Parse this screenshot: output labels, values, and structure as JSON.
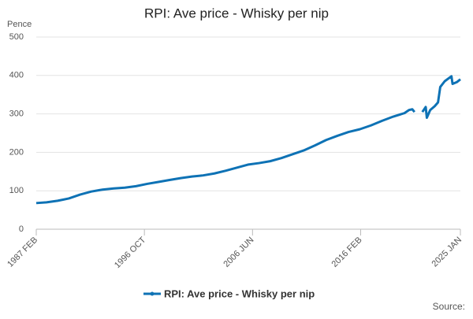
{
  "chart_data": {
    "type": "line",
    "title": "RPI: Ave price - Whisky per nip",
    "y_label": "Pence",
    "source": "Source:",
    "x": [
      1987.083,
      1988,
      1989,
      1990,
      1991,
      1992,
      1993,
      1994,
      1995,
      1996,
      1997,
      1998,
      1999,
      2000,
      2001,
      2002,
      2003,
      2004,
      2005,
      2006,
      2007,
      2008,
      2009,
      2010,
      2011,
      2012,
      2013,
      2014,
      2015,
      2016,
      2017,
      2018,
      2019,
      2020,
      2020.4,
      2020.7,
      2020.9,
      2021.2,
      2021.6,
      2021.9,
      2022.0,
      2022.3,
      2022.7,
      2023.0,
      2023.2,
      2023.6,
      2024.2,
      2024.3,
      2024.7,
      2025.0
    ],
    "series": [
      {
        "name": "RPI: Ave price - Whisky per nip",
        "color": "#0e72b5",
        "values": [
          68,
          70,
          74,
          80,
          90,
          98,
          103,
          106,
          108,
          112,
          118,
          123,
          128,
          133,
          137,
          140,
          145,
          152,
          160,
          168,
          172,
          177,
          185,
          195,
          205,
          218,
          232,
          243,
          253,
          260,
          270,
          282,
          293,
          302,
          310,
          312,
          305,
          null,
          305,
          318,
          290,
          310,
          320,
          330,
          370,
          385,
          398,
          378,
          383,
          390
        ]
      }
    ],
    "xlim": [
      1987.083,
      2025.0
    ],
    "xticks": [
      {
        "value": 1987.083,
        "label": "1987 FEB"
      },
      {
        "value": 1996.75,
        "label": "1996 OCT"
      },
      {
        "value": 2006.417,
        "label": "2006 JUN"
      },
      {
        "value": 2016.083,
        "label": "2016 FEB"
      },
      {
        "value": 2025.0,
        "label": "2025 JAN"
      }
    ],
    "ylim": [
      0,
      500
    ],
    "yticks": [
      0,
      100,
      200,
      300,
      400,
      500
    ],
    "grid": true
  }
}
